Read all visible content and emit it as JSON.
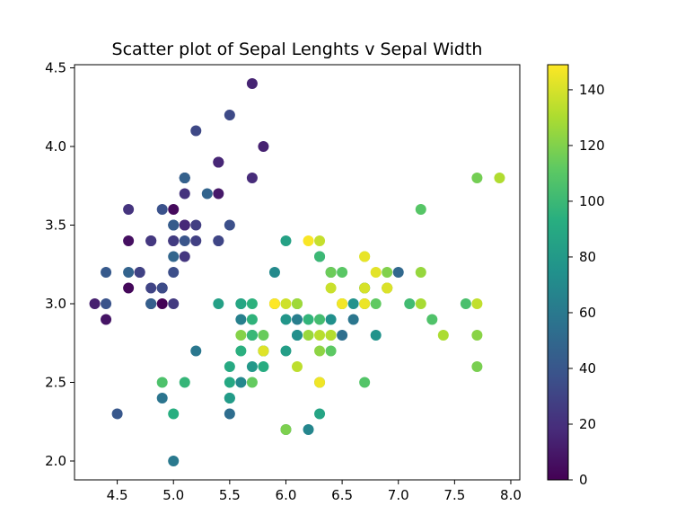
{
  "chart_data": {
    "type": "scatter",
    "title": "Scatter plot of Sepal Lenghts v Sepal Width",
    "xlabel": "",
    "ylabel": "",
    "xlim": [
      4.12,
      8.08
    ],
    "ylim": [
      1.88,
      4.52
    ],
    "xticks": [
      "4.5",
      "5.0",
      "5.5",
      "6.0",
      "6.5",
      "7.0",
      "7.5",
      "8.0"
    ],
    "yticks": [
      "2.0",
      "2.5",
      "3.0",
      "3.5",
      "4.0",
      "4.5"
    ],
    "grid": false,
    "colorbar": {
      "colormap": "viridis",
      "range": [
        0,
        149
      ],
      "ticks": [
        "0",
        "20",
        "40",
        "60",
        "80",
        "100",
        "120",
        "140"
      ]
    },
    "color_value_name": "index",
    "points": [
      {
        "x": 5.1,
        "y": 3.5,
        "c": 0
      },
      {
        "x": 4.9,
        "y": 3.0,
        "c": 1
      },
      {
        "x": 4.7,
        "y": 3.2,
        "c": 2
      },
      {
        "x": 4.6,
        "y": 3.1,
        "c": 3
      },
      {
        "x": 5.0,
        "y": 3.6,
        "c": 4
      },
      {
        "x": 5.4,
        "y": 3.9,
        "c": 5
      },
      {
        "x": 4.6,
        "y": 3.4,
        "c": 6
      },
      {
        "x": 5.0,
        "y": 3.4,
        "c": 7
      },
      {
        "x": 4.4,
        "y": 2.9,
        "c": 8
      },
      {
        "x": 4.9,
        "y": 3.1,
        "c": 9
      },
      {
        "x": 5.4,
        "y": 3.7,
        "c": 10
      },
      {
        "x": 4.8,
        "y": 3.4,
        "c": 11
      },
      {
        "x": 4.8,
        "y": 3.0,
        "c": 12
      },
      {
        "x": 4.3,
        "y": 3.0,
        "c": 13
      },
      {
        "x": 5.8,
        "y": 4.0,
        "c": 14
      },
      {
        "x": 5.7,
        "y": 4.4,
        "c": 15
      },
      {
        "x": 5.4,
        "y": 3.9,
        "c": 16
      },
      {
        "x": 5.1,
        "y": 3.5,
        "c": 17
      },
      {
        "x": 5.7,
        "y": 3.8,
        "c": 18
      },
      {
        "x": 5.1,
        "y": 3.8,
        "c": 19
      },
      {
        "x": 5.4,
        "y": 3.4,
        "c": 20
      },
      {
        "x": 5.1,
        "y": 3.7,
        "c": 21
      },
      {
        "x": 4.6,
        "y": 3.6,
        "c": 22
      },
      {
        "x": 5.1,
        "y": 3.3,
        "c": 23
      },
      {
        "x": 4.8,
        "y": 3.4,
        "c": 24
      },
      {
        "x": 5.0,
        "y": 3.0,
        "c": 25
      },
      {
        "x": 5.0,
        "y": 3.4,
        "c": 26
      },
      {
        "x": 5.2,
        "y": 3.5,
        "c": 27
      },
      {
        "x": 5.2,
        "y": 3.4,
        "c": 28
      },
      {
        "x": 4.7,
        "y": 3.2,
        "c": 29
      },
      {
        "x": 4.8,
        "y": 3.1,
        "c": 30
      },
      {
        "x": 5.4,
        "y": 3.4,
        "c": 31
      },
      {
        "x": 5.2,
        "y": 4.1,
        "c": 32
      },
      {
        "x": 5.5,
        "y": 4.2,
        "c": 33
      },
      {
        "x": 4.9,
        "y": 3.1,
        "c": 34
      },
      {
        "x": 5.0,
        "y": 3.2,
        "c": 35
      },
      {
        "x": 5.5,
        "y": 3.5,
        "c": 36
      },
      {
        "x": 4.9,
        "y": 3.6,
        "c": 37
      },
      {
        "x": 4.4,
        "y": 3.0,
        "c": 38
      },
      {
        "x": 5.1,
        "y": 3.4,
        "c": 39
      },
      {
        "x": 5.0,
        "y": 3.5,
        "c": 40
      },
      {
        "x": 4.5,
        "y": 2.3,
        "c": 41
      },
      {
        "x": 4.4,
        "y": 3.2,
        "c": 42
      },
      {
        "x": 5.0,
        "y": 3.5,
        "c": 43
      },
      {
        "x": 5.1,
        "y": 3.8,
        "c": 44
      },
      {
        "x": 4.8,
        "y": 3.0,
        "c": 45
      },
      {
        "x": 5.1,
        "y": 3.8,
        "c": 46
      },
      {
        "x": 4.6,
        "y": 3.2,
        "c": 47
      },
      {
        "x": 5.3,
        "y": 3.7,
        "c": 48
      },
      {
        "x": 5.0,
        "y": 3.3,
        "c": 49
      },
      {
        "x": 7.0,
        "y": 3.2,
        "c": 50
      },
      {
        "x": 6.4,
        "y": 3.2,
        "c": 51
      },
      {
        "x": 6.9,
        "y": 3.1,
        "c": 52
      },
      {
        "x": 5.5,
        "y": 2.3,
        "c": 53
      },
      {
        "x": 6.5,
        "y": 2.8,
        "c": 54
      },
      {
        "x": 5.7,
        "y": 2.8,
        "c": 55
      },
      {
        "x": 6.3,
        "y": 3.3,
        "c": 56
      },
      {
        "x": 4.9,
        "y": 2.4,
        "c": 57
      },
      {
        "x": 6.6,
        "y": 2.9,
        "c": 58
      },
      {
        "x": 5.2,
        "y": 2.7,
        "c": 59
      },
      {
        "x": 5.0,
        "y": 2.0,
        "c": 60
      },
      {
        "x": 5.9,
        "y": 3.0,
        "c": 61
      },
      {
        "x": 6.0,
        "y": 2.2,
        "c": 62
      },
      {
        "x": 6.1,
        "y": 2.9,
        "c": 63
      },
      {
        "x": 5.6,
        "y": 2.9,
        "c": 64
      },
      {
        "x": 6.7,
        "y": 3.1,
        "c": 65
      },
      {
        "x": 5.6,
        "y": 3.0,
        "c": 66
      },
      {
        "x": 5.8,
        "y": 2.7,
        "c": 67
      },
      {
        "x": 6.2,
        "y": 2.2,
        "c": 68
      },
      {
        "x": 5.6,
        "y": 2.5,
        "c": 69
      },
      {
        "x": 5.9,
        "y": 3.2,
        "c": 70
      },
      {
        "x": 6.1,
        "y": 2.8,
        "c": 71
      },
      {
        "x": 6.3,
        "y": 2.5,
        "c": 72
      },
      {
        "x": 6.1,
        "y": 2.8,
        "c": 73
      },
      {
        "x": 6.4,
        "y": 2.9,
        "c": 74
      },
      {
        "x": 6.6,
        "y": 3.0,
        "c": 75
      },
      {
        "x": 6.8,
        "y": 2.8,
        "c": 76
      },
      {
        "x": 6.7,
        "y": 3.0,
        "c": 77
      },
      {
        "x": 6.0,
        "y": 2.9,
        "c": 78
      },
      {
        "x": 5.7,
        "y": 2.6,
        "c": 79
      },
      {
        "x": 5.5,
        "y": 2.4,
        "c": 80
      },
      {
        "x": 5.5,
        "y": 2.4,
        "c": 81
      },
      {
        "x": 5.8,
        "y": 2.7,
        "c": 82
      },
      {
        "x": 6.0,
        "y": 2.7,
        "c": 83
      },
      {
        "x": 5.4,
        "y": 3.0,
        "c": 84
      },
      {
        "x": 6.0,
        "y": 3.4,
        "c": 85
      },
      {
        "x": 6.7,
        "y": 3.1,
        "c": 86
      },
      {
        "x": 6.3,
        "y": 2.3,
        "c": 87
      },
      {
        "x": 5.6,
        "y": 3.0,
        "c": 88
      },
      {
        "x": 5.5,
        "y": 2.5,
        "c": 89
      },
      {
        "x": 5.5,
        "y": 2.6,
        "c": 90
      },
      {
        "x": 6.1,
        "y": 3.0,
        "c": 91
      },
      {
        "x": 5.8,
        "y": 2.6,
        "c": 92
      },
      {
        "x": 5.0,
        "y": 2.3,
        "c": 93
      },
      {
        "x": 5.6,
        "y": 2.7,
        "c": 94
      },
      {
        "x": 5.7,
        "y": 3.0,
        "c": 95
      },
      {
        "x": 5.7,
        "y": 2.9,
        "c": 96
      },
      {
        "x": 6.2,
        "y": 2.9,
        "c": 97
      },
      {
        "x": 5.1,
        "y": 2.5,
        "c": 98
      },
      {
        "x": 5.7,
        "y": 2.8,
        "c": 99
      },
      {
        "x": 6.3,
        "y": 3.3,
        "c": 100
      },
      {
        "x": 5.8,
        "y": 2.7,
        "c": 101
      },
      {
        "x": 7.1,
        "y": 3.0,
        "c": 102
      },
      {
        "x": 6.3,
        "y": 2.9,
        "c": 103
      },
      {
        "x": 6.5,
        "y": 3.0,
        "c": 104
      },
      {
        "x": 7.6,
        "y": 3.0,
        "c": 105
      },
      {
        "x": 4.9,
        "y": 2.5,
        "c": 106
      },
      {
        "x": 7.3,
        "y": 2.9,
        "c": 107
      },
      {
        "x": 6.7,
        "y": 2.5,
        "c": 108
      },
      {
        "x": 7.2,
        "y": 3.6,
        "c": 109
      },
      {
        "x": 6.5,
        "y": 3.2,
        "c": 110
      },
      {
        "x": 6.4,
        "y": 2.7,
        "c": 111
      },
      {
        "x": 6.8,
        "y": 3.0,
        "c": 112
      },
      {
        "x": 5.7,
        "y": 2.5,
        "c": 113
      },
      {
        "x": 5.8,
        "y": 2.8,
        "c": 114
      },
      {
        "x": 6.4,
        "y": 3.2,
        "c": 115
      },
      {
        "x": 6.5,
        "y": 3.0,
        "c": 116
      },
      {
        "x": 7.7,
        "y": 3.8,
        "c": 117
      },
      {
        "x": 7.7,
        "y": 2.6,
        "c": 118
      },
      {
        "x": 6.0,
        "y": 2.2,
        "c": 119
      },
      {
        "x": 6.9,
        "y": 3.2,
        "c": 120
      },
      {
        "x": 5.6,
        "y": 2.8,
        "c": 121
      },
      {
        "x": 7.7,
        "y": 2.8,
        "c": 122
      },
      {
        "x": 6.3,
        "y": 2.7,
        "c": 123
      },
      {
        "x": 6.7,
        "y": 3.3,
        "c": 124
      },
      {
        "x": 7.2,
        "y": 3.2,
        "c": 125
      },
      {
        "x": 6.2,
        "y": 2.8,
        "c": 126
      },
      {
        "x": 6.1,
        "y": 3.0,
        "c": 127
      },
      {
        "x": 6.4,
        "y": 2.8,
        "c": 128
      },
      {
        "x": 7.2,
        "y": 3.0,
        "c": 129
      },
      {
        "x": 7.4,
        "y": 2.8,
        "c": 130
      },
      {
        "x": 7.9,
        "y": 3.8,
        "c": 131
      },
      {
        "x": 6.4,
        "y": 2.8,
        "c": 132
      },
      {
        "x": 6.3,
        "y": 2.8,
        "c": 133
      },
      {
        "x": 6.1,
        "y": 2.6,
        "c": 134
      },
      {
        "x": 7.7,
        "y": 3.0,
        "c": 135
      },
      {
        "x": 6.3,
        "y": 3.4,
        "c": 136
      },
      {
        "x": 6.4,
        "y": 3.1,
        "c": 137
      },
      {
        "x": 6.0,
        "y": 3.0,
        "c": 138
      },
      {
        "x": 6.9,
        "y": 3.1,
        "c": 139
      },
      {
        "x": 6.7,
        "y": 3.1,
        "c": 140
      },
      {
        "x": 6.9,
        "y": 3.1,
        "c": 141
      },
      {
        "x": 5.8,
        "y": 2.7,
        "c": 142
      },
      {
        "x": 6.8,
        "y": 3.2,
        "c": 143
      },
      {
        "x": 6.7,
        "y": 3.3,
        "c": 144
      },
      {
        "x": 6.7,
        "y": 3.0,
        "c": 145
      },
      {
        "x": 6.3,
        "y": 2.5,
        "c": 146
      },
      {
        "x": 6.5,
        "y": 3.0,
        "c": 147
      },
      {
        "x": 6.2,
        "y": 3.4,
        "c": 148
      },
      {
        "x": 5.9,
        "y": 3.0,
        "c": 149
      }
    ]
  }
}
